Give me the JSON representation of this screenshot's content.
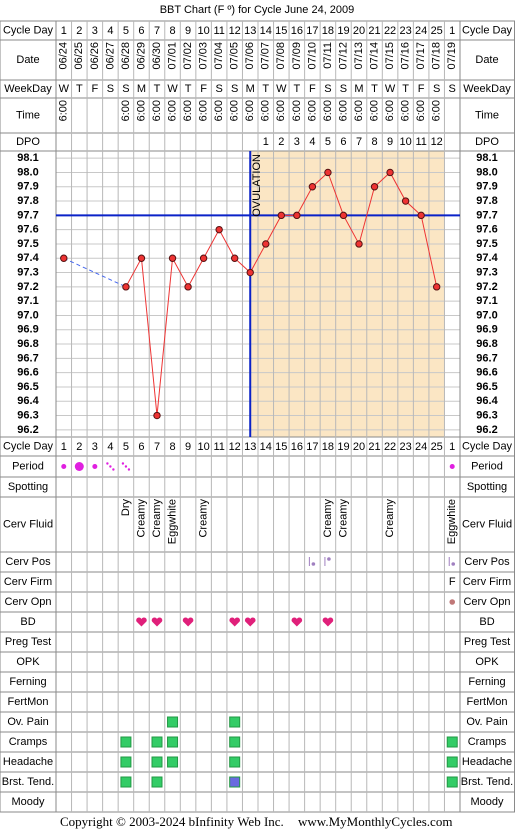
{
  "chart_data": {
    "type": "line",
    "title": "BBT Chart (F º) for Cycle June 24, 2009",
    "categories": [
      "06/24",
      "06/25",
      "06/26",
      "06/27",
      "06/28",
      "06/29",
      "06/30",
      "07/01",
      "07/02",
      "07/03",
      "07/04",
      "07/05",
      "07/06",
      "07/07",
      "07/08",
      "07/09",
      "07/10",
      "07/11",
      "07/12",
      "07/13",
      "07/14",
      "07/15",
      "07/16",
      "07/17",
      "07/18",
      "07/19"
    ],
    "values": [
      97.4,
      null,
      null,
      null,
      97.2,
      97.4,
      96.3,
      97.4,
      97.2,
      97.4,
      97.6,
      97.4,
      97.3,
      97.5,
      97.7,
      97.7,
      97.9,
      98.0,
      97.7,
      97.5,
      97.9,
      98.0,
      97.8,
      97.7,
      97.2,
      null
    ],
    "color": "#ee3333",
    "ylim": [
      96.15,
      98.15
    ],
    "yticks": [
      98.1,
      {
        "value": 98,
        "label": "98.0"
      },
      97.9,
      97.8,
      97.7,
      97.6,
      97.5,
      97.4,
      97.3,
      97.2,
      97.1,
      {
        "value": 97,
        "label": "97.0"
      },
      96.9,
      96.8,
      96.7,
      96.6,
      96.5,
      96.4,
      96.3,
      96.2
    ],
    "grid": true,
    "coverline": 97.7,
    "coverline_color": "#0a22c8",
    "ovulation_label": "OVULATION",
    "ovulation_category": "07/06"
  },
  "labels": {
    "cycle_day": "Cycle Day",
    "date": "Date",
    "weekday": "WeekDay",
    "time": "Time",
    "dpo": "DPO"
  },
  "cycle_days": [
    1,
    2,
    3,
    4,
    5,
    6,
    7,
    8,
    9,
    10,
    11,
    12,
    13,
    14,
    15,
    16,
    17,
    18,
    19,
    20,
    21,
    22,
    23,
    24,
    25,
    1
  ],
  "weekdays": [
    "W",
    "T",
    "F",
    "S",
    "S",
    "M",
    "T",
    "W",
    "T",
    "F",
    "S",
    "S",
    "M",
    "T",
    "W",
    "T",
    "F",
    "S",
    "S",
    "M",
    "T",
    "W",
    "T",
    "F",
    "S",
    "S"
  ],
  "times": [
    "6:00",
    null,
    null,
    null,
    "6:00",
    "6:00",
    "6:00",
    "6:00",
    "6:00",
    "6:00",
    "6:00",
    "6:00",
    "6:00",
    "6:00",
    "6:00",
    "6:00",
    "6:00",
    "6:00",
    "6:00",
    "6:00",
    "6:00",
    "6:00",
    "6:00",
    "6:00",
    "6:00",
    null
  ],
  "dpo": [
    null,
    null,
    null,
    null,
    null,
    null,
    null,
    null,
    null,
    null,
    null,
    null,
    null,
    1,
    2,
    3,
    4,
    5,
    6,
    7,
    8,
    9,
    10,
    11,
    12,
    null
  ],
  "lower_rows": [
    "Period",
    "Spotting",
    "Cerv Fluid",
    "Cerv Pos",
    "Cerv Firm",
    "Cerv Opn",
    "BD",
    "Preg Test",
    "OPK",
    "Ferning",
    "FertMon",
    "Ov. Pain",
    "Cramps",
    "Headache",
    "Brst. Tend.",
    "Moody"
  ],
  "cerv_fluid": [
    null,
    null,
    null,
    null,
    "Dry",
    "Creamy",
    "Creamy",
    "Eggwhite",
    null,
    "Creamy",
    null,
    null,
    null,
    null,
    null,
    null,
    null,
    "Creamy",
    "Creamy",
    null,
    null,
    "Creamy",
    null,
    null,
    null,
    "Eggwhite"
  ],
  "cerv_firm": [
    null,
    null,
    null,
    null,
    null,
    null,
    null,
    null,
    null,
    null,
    null,
    null,
    null,
    null,
    null,
    null,
    null,
    null,
    null,
    null,
    null,
    null,
    null,
    null,
    null,
    "F"
  ],
  "footer": {
    "copyright": "Copyright © 2003-2024 bInfinity Web Inc.",
    "website": "www.MyMonthlyCycles.com"
  }
}
